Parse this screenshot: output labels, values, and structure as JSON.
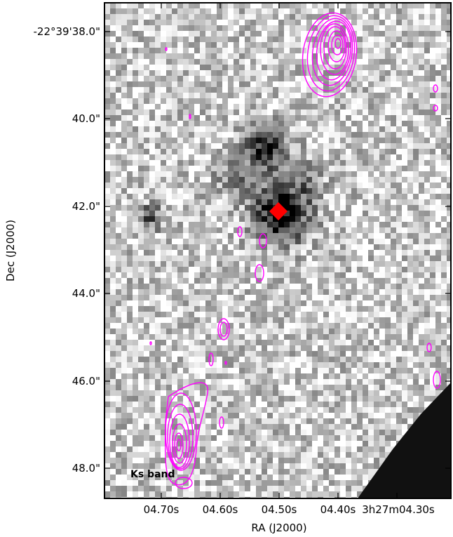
{
  "figure": {
    "band_label": "Ks band",
    "x_axis_label": "RA (J2000)",
    "y_axis_label": "Dec (J2000)",
    "x_ticks": [
      "04.70s",
      "04.60s",
      "04.50s",
      "04.40s",
      "3h27m04.30s"
    ],
    "y_ticks": [
      "-22°39'38.0\"",
      "40.0\"",
      "42.0\"",
      "44.0\"",
      "46.0\"",
      "48.0\""
    ],
    "colors": {
      "contour": "#ff00ff",
      "marker": "#ff0000",
      "background_map": "grayscale"
    },
    "marker_shape": "diamond"
  }
}
